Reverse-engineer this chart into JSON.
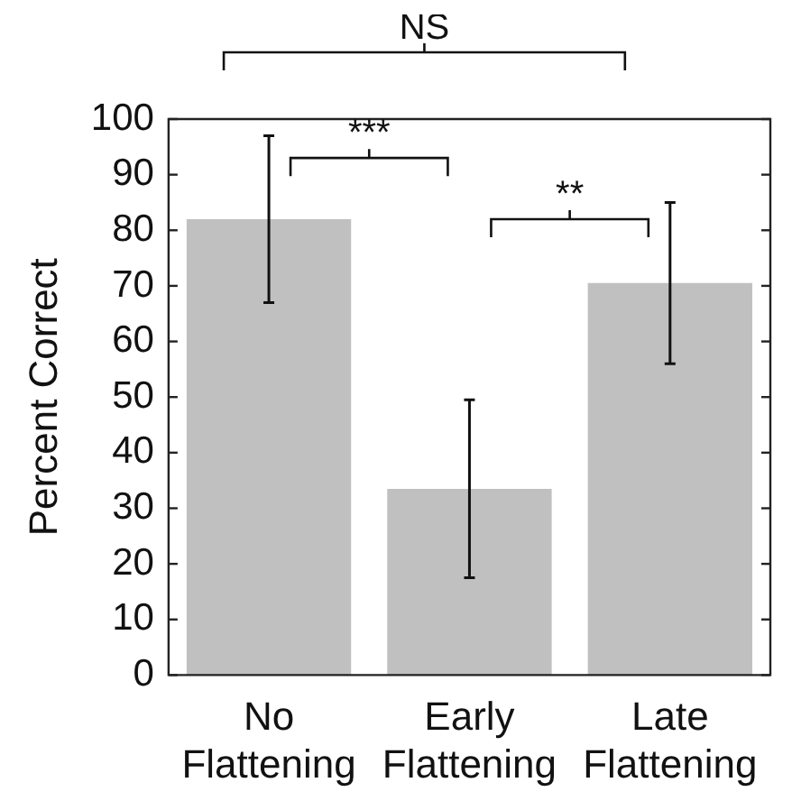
{
  "chart_data": {
    "type": "bar",
    "ylabel": "Percent Correct",
    "categories": [
      "No Flattening",
      "Early Flattening",
      "Late Flattening"
    ],
    "values": [
      82,
      33.5,
      70.5
    ],
    "color": "#c0c0c0",
    "errors": [
      [
        67,
        97
      ],
      [
        17.5,
        49.5
      ],
      [
        56,
        85
      ]
    ],
    "ylim": [
      0,
      100
    ],
    "yticks": [
      0,
      10,
      20,
      30,
      40,
      50,
      60,
      70,
      80,
      90,
      100
    ],
    "grid": false,
    "legend": false,
    "annotations": [
      "***",
      "**",
      "NS"
    ]
  }
}
